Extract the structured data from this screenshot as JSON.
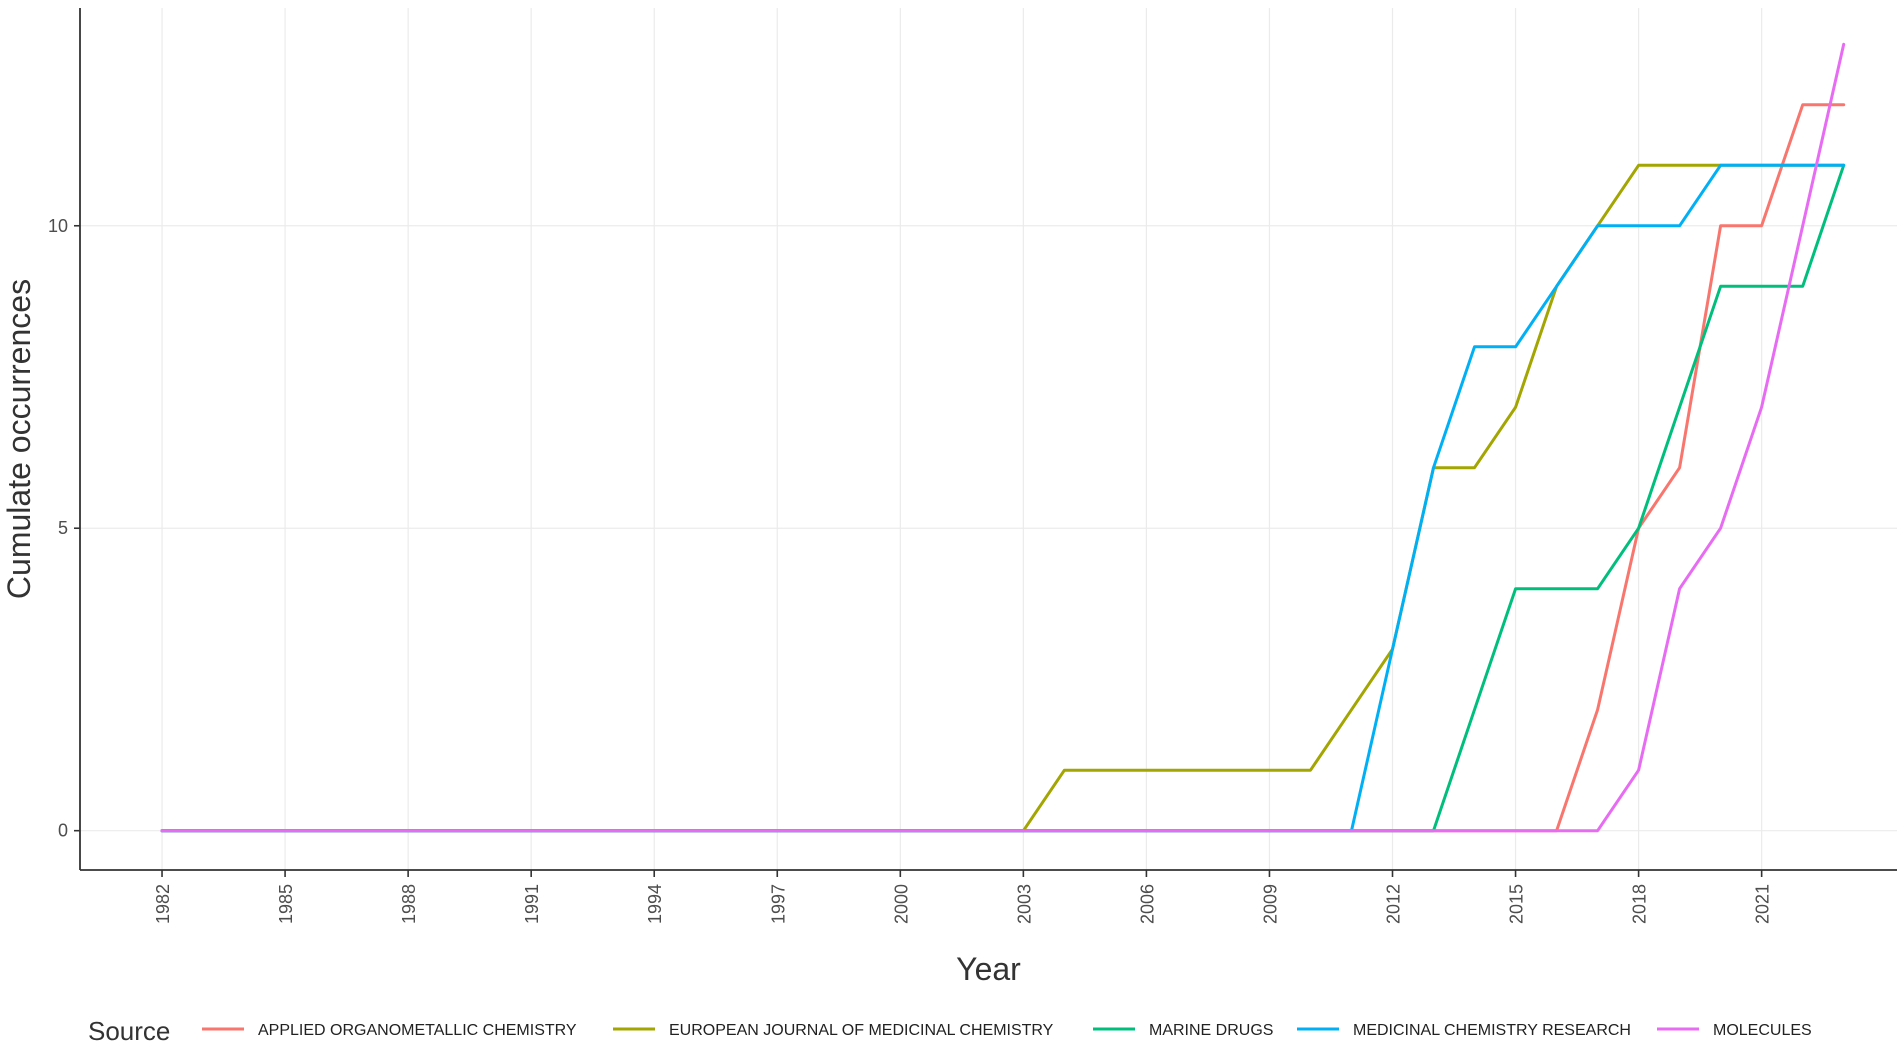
{
  "chart_data": {
    "type": "line",
    "title": "",
    "xlabel": "Year",
    "ylabel": "Cumulate occurrences",
    "xlim": [
      1980,
      2024.3
    ],
    "ylim": [
      -0.65,
      13.6
    ],
    "x_ticks": [
      1982,
      1985,
      1988,
      1991,
      1994,
      1997,
      2000,
      2003,
      2006,
      2009,
      2012,
      2015,
      2018,
      2021
    ],
    "y_ticks": [
      0,
      5,
      10
    ],
    "grid": true,
    "legend": {
      "title": "Source",
      "position": "bottom"
    },
    "x": [
      1982,
      2003,
      2004,
      2010,
      2011,
      2012,
      2013,
      2014,
      2015,
      2016,
      2017,
      2018,
      2019,
      2020,
      2021,
      2022,
      2023
    ],
    "series": [
      {
        "name": "APPLIED ORGANOMETALLIC CHEMISTRY",
        "color": "#F8766D",
        "values": [
          0,
          0,
          0,
          0,
          0,
          0,
          0,
          0,
          0,
          0,
          2,
          5,
          6,
          10,
          10,
          12,
          12
        ]
      },
      {
        "name": "EUROPEAN JOURNAL OF MEDICINAL CHEMISTRY",
        "color": "#A3A500",
        "values": [
          0,
          0,
          1,
          1,
          2,
          3,
          6,
          6,
          7,
          9,
          10,
          11,
          11,
          11,
          11,
          11,
          11
        ]
      },
      {
        "name": "MARINE DRUGS",
        "color": "#00BF7D",
        "values": [
          0,
          0,
          0,
          0,
          0,
          0,
          0,
          2,
          4,
          4,
          4,
          5,
          7,
          9,
          9,
          9,
          11
        ]
      },
      {
        "name": "MEDICINAL CHEMISTRY RESEARCH",
        "color": "#00B0F6",
        "values": [
          0,
          0,
          0,
          0,
          0,
          3,
          6,
          8,
          8,
          9,
          10,
          10,
          10,
          11,
          11,
          11,
          11
        ]
      },
      {
        "name": "MOLECULES",
        "color": "#E76BF3",
        "values": [
          0,
          0,
          0,
          0,
          0,
          0,
          0,
          0,
          0,
          0,
          0,
          1,
          4,
          5,
          7,
          10,
          13
        ]
      }
    ]
  }
}
